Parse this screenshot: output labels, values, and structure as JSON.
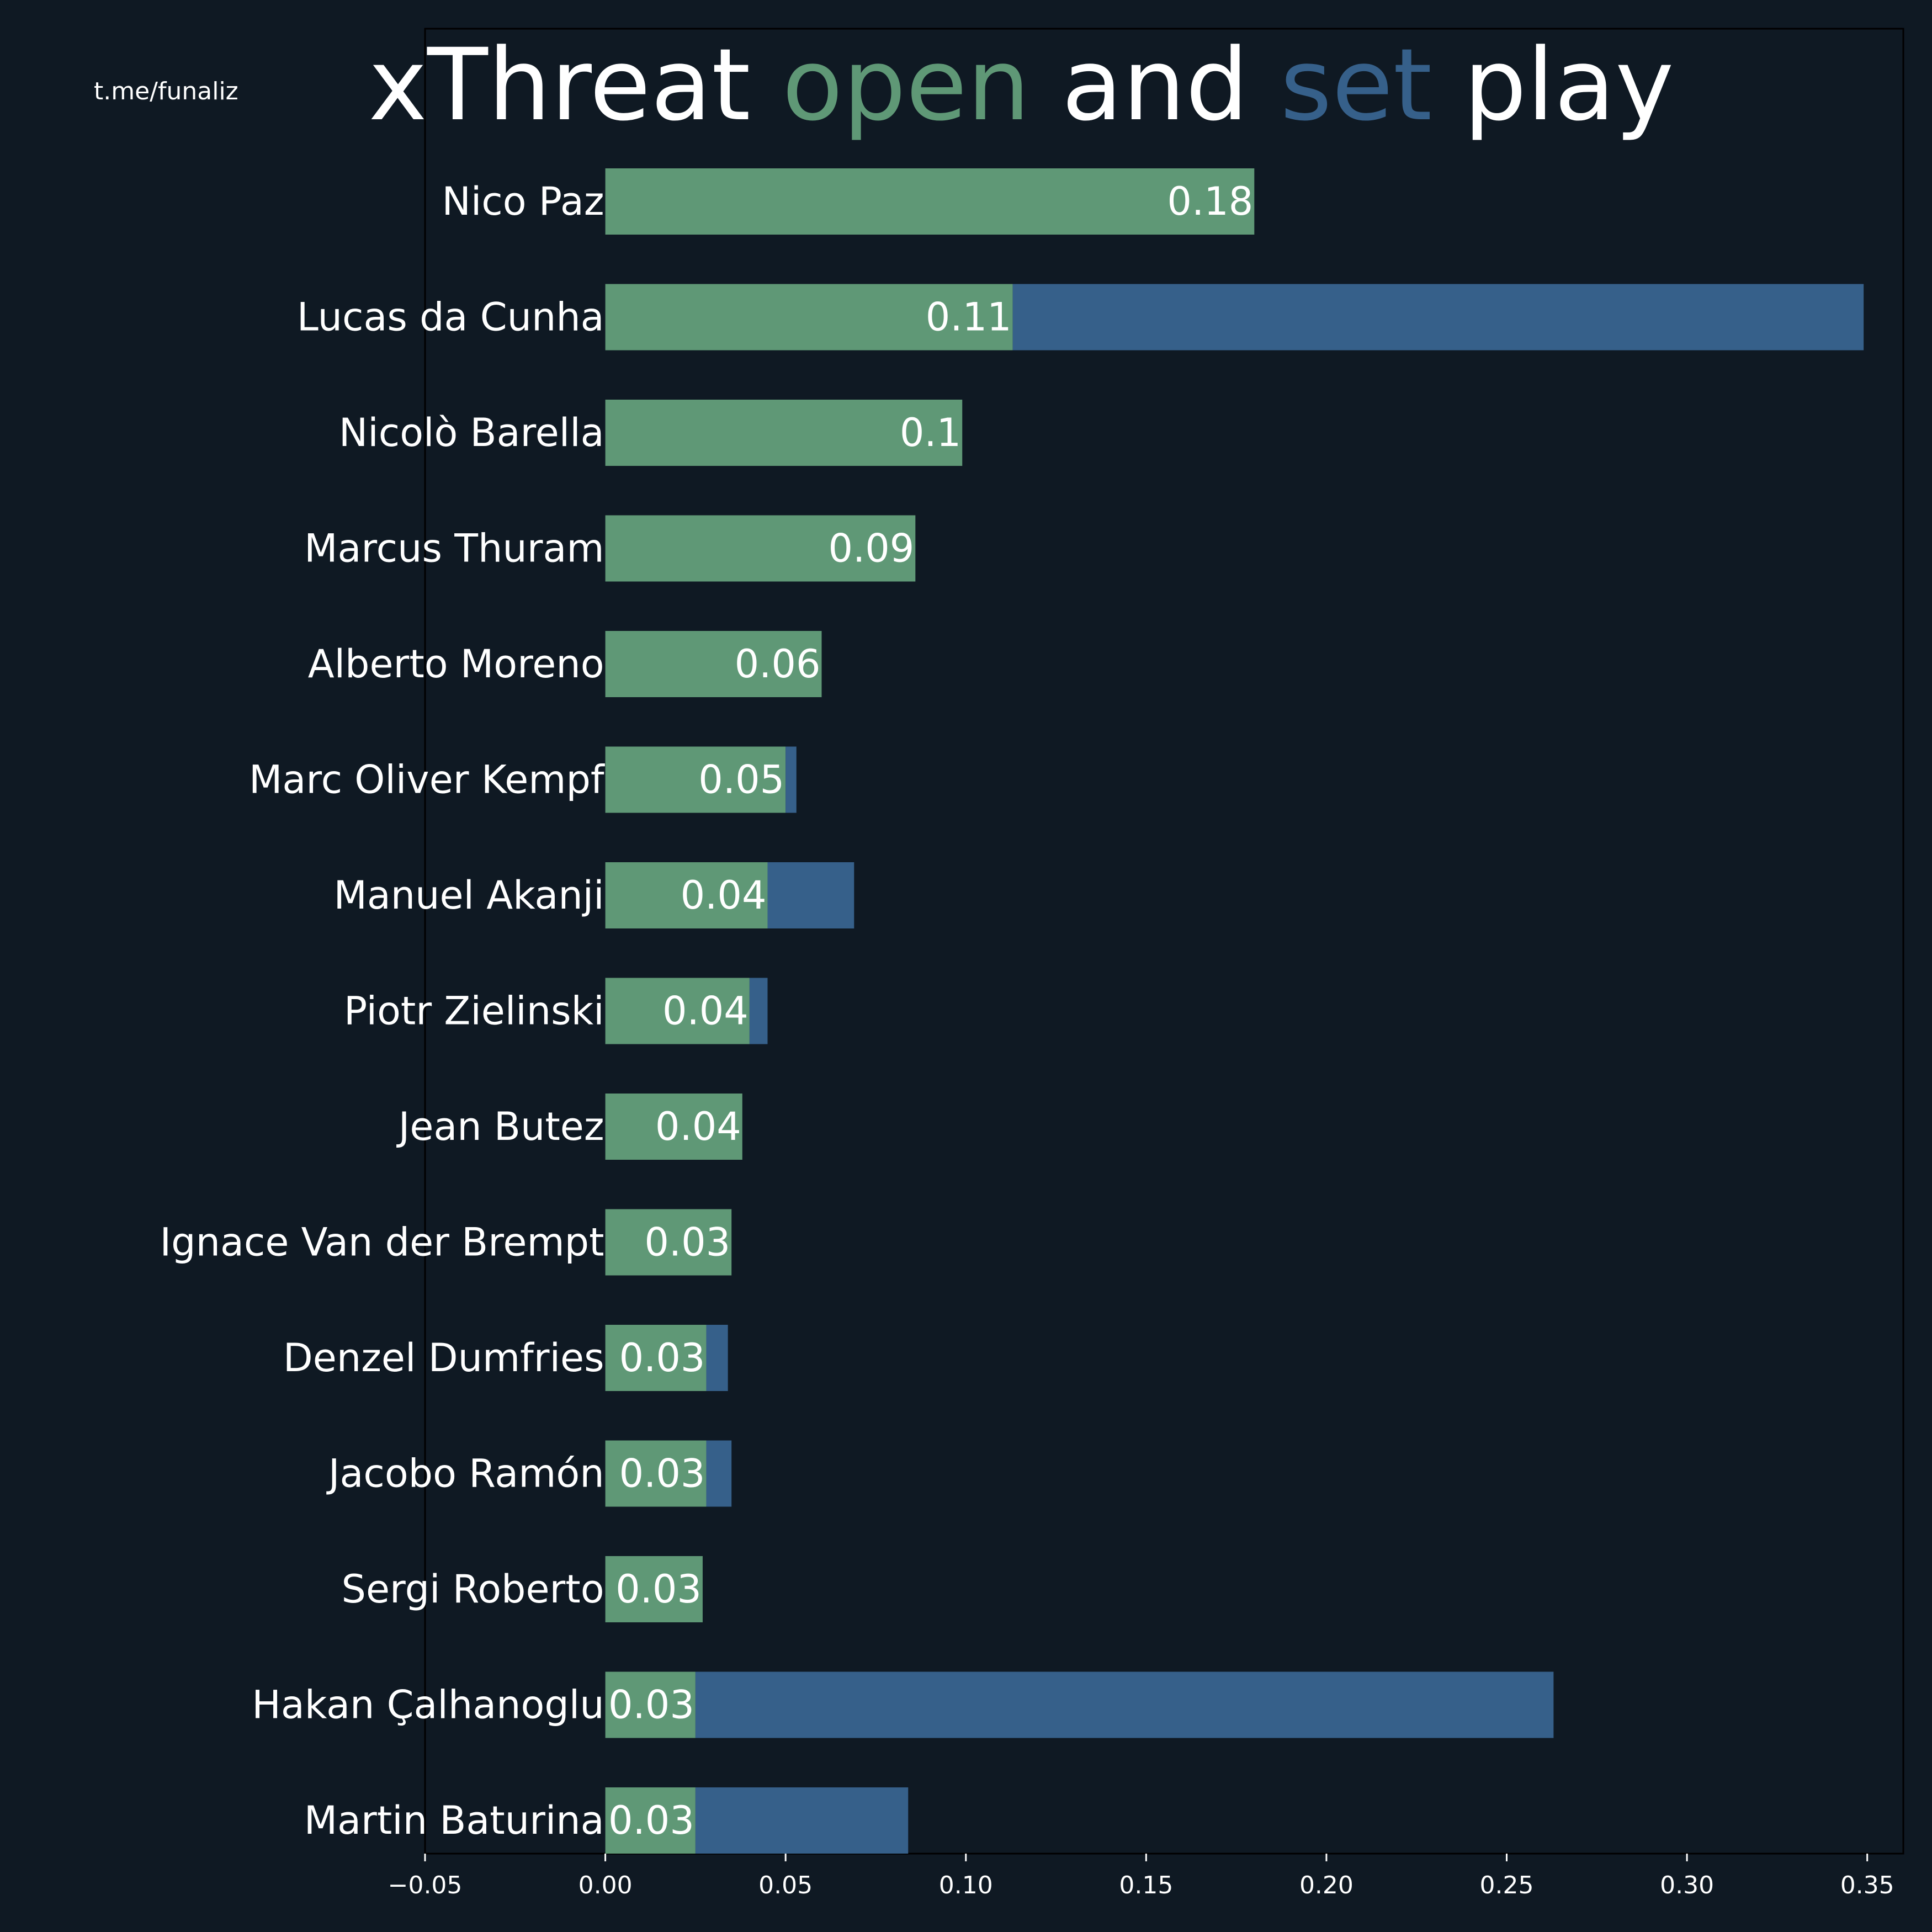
{
  "watermark": "t.me/funaliz",
  "title": {
    "parts": [
      {
        "text": "xThreat ",
        "color": "#ffffff"
      },
      {
        "text": "open",
        "color": "#5f9876"
      },
      {
        "text": " and ",
        "color": "#ffffff"
      },
      {
        "text": "set",
        "color": "#36608a"
      },
      {
        "text": " play",
        "color": "#ffffff"
      }
    ]
  },
  "colors": {
    "background": "#0f1923",
    "open_play": "#5f9876",
    "set_play": "#36608a",
    "text": "#ffffff"
  },
  "chart_data": {
    "type": "bar",
    "orientation": "horizontal",
    "stacked": true,
    "title": "xThreat open and set play",
    "xlabel": "",
    "ylabel": "",
    "xlim": [
      -0.05,
      0.36
    ],
    "x_ticks": [
      "−0.05",
      "0.00",
      "0.05",
      "0.10",
      "0.15",
      "0.20",
      "0.25",
      "0.30",
      "0.35"
    ],
    "x_tick_values": [
      -0.05,
      0,
      0.05,
      0.1,
      0.15,
      0.2,
      0.25,
      0.3,
      0.35
    ],
    "grid": false,
    "legend": "none",
    "categories": [
      "Nico Paz",
      "Lucas da Cunha",
      "Nicolò Barella",
      "Marcus Thuram",
      "Alberto Moreno",
      "Marc Oliver Kempf",
      "Manuel Akanji",
      "Piotr Zielinski",
      "Jean Butez",
      "Ignace Van der Brempt",
      "Denzel Dumfries",
      "Jacobo Ramón",
      "Sergi Roberto",
      "Hakan Çalhanoglu",
      "Martin Baturina"
    ],
    "series": [
      {
        "key": "open",
        "values": [
          0.18,
          0.113,
          0.099,
          0.086,
          0.06,
          0.05,
          0.045,
          0.04,
          0.038,
          0.035,
          0.028,
          0.028,
          0.027,
          0.025,
          0.025
        ]
      },
      {
        "key": "set",
        "values": [
          0,
          0.236,
          0,
          0,
          0,
          0.003,
          0.024,
          0.005,
          0,
          0,
          0.006,
          0.007,
          0,
          0.238,
          0.059
        ]
      }
    ],
    "data_labels": [
      "0.18",
      "0.11",
      "0.1",
      "0.09",
      "0.06",
      "0.05",
      "0.04",
      "0.04",
      "0.04",
      "0.03",
      "0.03",
      "0.03",
      "0.03",
      "0.03",
      "0.03"
    ]
  }
}
